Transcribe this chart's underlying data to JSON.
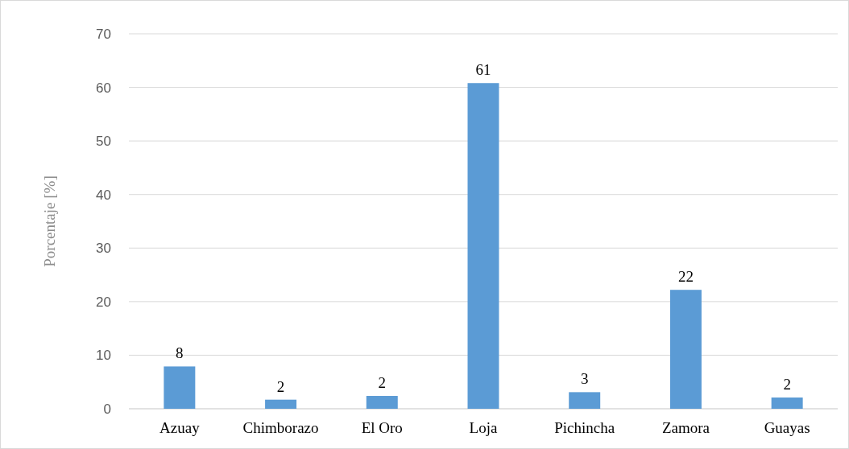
{
  "chart_data": {
    "type": "bar",
    "ylabel": "Porcentaje [%]",
    "categories": [
      "Azuay",
      "Chimborazo",
      "El Oro",
      "Loja",
      "Pichincha",
      "Zamora",
      "Guayas"
    ],
    "values": [
      7.9,
      1.7,
      2.4,
      60.8,
      3.1,
      22.2,
      2.1
    ],
    "value_labels": [
      "8",
      "2",
      "2",
      "61",
      "3",
      "22",
      "2"
    ],
    "color": "#5b9bd5",
    "ylim": [
      0,
      70
    ],
    "yticks": [
      0,
      10,
      20,
      30,
      40,
      50,
      60,
      70
    ],
    "grid": "y"
  }
}
